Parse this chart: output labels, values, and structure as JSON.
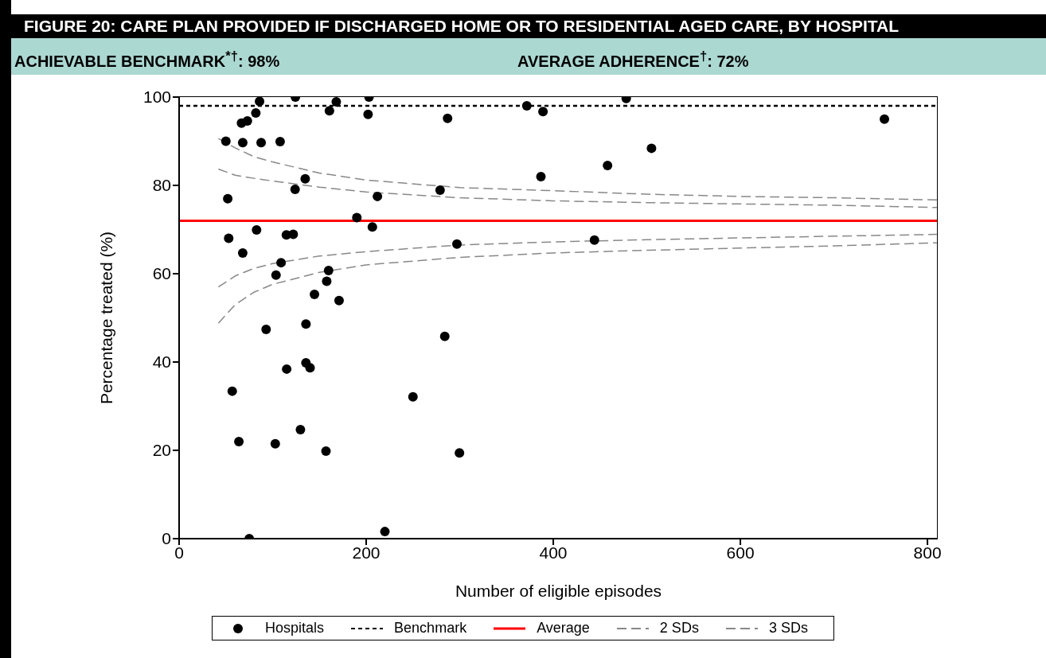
{
  "chart_data": {
    "type": "scatter",
    "title": "FIGURE 20: CARE PLAN PROVIDED IF DISCHARGED HOME OR TO RESIDENTIAL AGED CARE, BY HOSPITAL",
    "annotations": [
      "ACHIEVABLE BENCHMARK$^{*†}$: 98%",
      "AVERAGE ADHERENCE$^{†}$: 72%"
    ],
    "xlabel": "Number of eligible episodes",
    "ylabel": "Percentage treated (%)",
    "xlim": [
      0,
      811
    ],
    "xticks": [
      0,
      200,
      400,
      600,
      800
    ],
    "ylim": [
      0,
      100
    ],
    "yticks": [
      0,
      20,
      40,
      60,
      80,
      100
    ],
    "legend": "bottom",
    "series": [
      {
        "name": "Hospitals",
        "marker": "circle",
        "color": "#000000",
        "x": [
          50,
          68,
          87.7,
          108,
          66.7,
          73,
          82,
          86,
          124.3,
          168,
          160.7,
          203,
          202,
          52,
          134.8,
          124,
          212,
          190,
          206.6,
          82.8,
          53,
          114.7,
          122,
          68,
          109,
          103.6,
          159.8,
          157.8,
          144.7,
          171,
          93,
          135.6,
          135.6,
          140,
          115,
          56.8,
          250,
          63.9,
          102.8,
          129.7,
          157,
          75,
          220,
          287,
          279,
          297,
          284,
          299.7,
          371.7,
          389,
          386.8,
          458,
          478,
          505,
          444,
          754
        ],
        "values": [
          90,
          89.7,
          89.7,
          89.9,
          94.1,
          94.6,
          96.4,
          99,
          100,
          98.9,
          96.9,
          100,
          96.1,
          77,
          81.5,
          79.1,
          77.5,
          72.7,
          70.6,
          69.9,
          68,
          68.8,
          68.9,
          64.7,
          62.5,
          59.7,
          60.7,
          58.3,
          55.3,
          53.9,
          47.4,
          48.6,
          39.8,
          38.7,
          38.4,
          33.4,
          32.1,
          22,
          21.5,
          24.7,
          19.8,
          0,
          1.6,
          95.2,
          78.9,
          66.7,
          45.8,
          19.4,
          98,
          96.7,
          82,
          84.5,
          99.7,
          88.4,
          67.6,
          95
        ]
      },
      {
        "name": "2 SDs",
        "type": "line",
        "line_style": "dashed",
        "color": "#888888",
        "x": [
          42,
          60,
          80,
          100,
          150,
          200,
          300,
          400,
          500,
          600,
          700,
          810
        ],
        "values": [
          83.7,
          82.3,
          81.6,
          81,
          79.6,
          78.5,
          77.2,
          76.5,
          76.1,
          75.8,
          75.5,
          75
        ]
      },
      {
        "type": "line",
        "line_style": "dashed",
        "color": "#888888",
        "x": [
          42,
          60,
          80,
          100,
          150,
          200,
          300,
          400,
          500,
          600,
          700,
          810
        ],
        "values": [
          57,
          59.5,
          61.2,
          62.3,
          64,
          65,
          66.5,
          67.2,
          67.7,
          68.1,
          68.5,
          68.9
        ]
      },
      {
        "name": "3 SDs",
        "type": "line",
        "line_style": "dashed",
        "color": "#888888",
        "x": [
          42,
          60,
          80,
          100,
          150,
          200,
          300,
          400,
          500,
          600,
          700,
          810
        ],
        "values": [
          90.6,
          88.5,
          86.5,
          85.3,
          82.8,
          81.2,
          79.5,
          78.8,
          78,
          77.5,
          77.2,
          76.7
        ]
      },
      {
        "type": "line",
        "line_style": "dashed",
        "color": "#888888",
        "x": [
          42,
          60,
          80,
          100,
          150,
          200,
          300,
          400,
          500,
          600,
          700,
          810
        ],
        "values": [
          48.8,
          53,
          55.8,
          57.6,
          60.3,
          62,
          63.7,
          64.7,
          65.3,
          65.8,
          66.3,
          67
        ]
      }
    ],
    "ref_lines": [
      {
        "axis": "y",
        "value": 98,
        "label": "Benchmark",
        "color": "#000000",
        "line_style": "dotted"
      },
      {
        "axis": "y",
        "value": 72,
        "label": "Average",
        "color": "#ff0000",
        "line_style": "solid"
      }
    ]
  }
}
